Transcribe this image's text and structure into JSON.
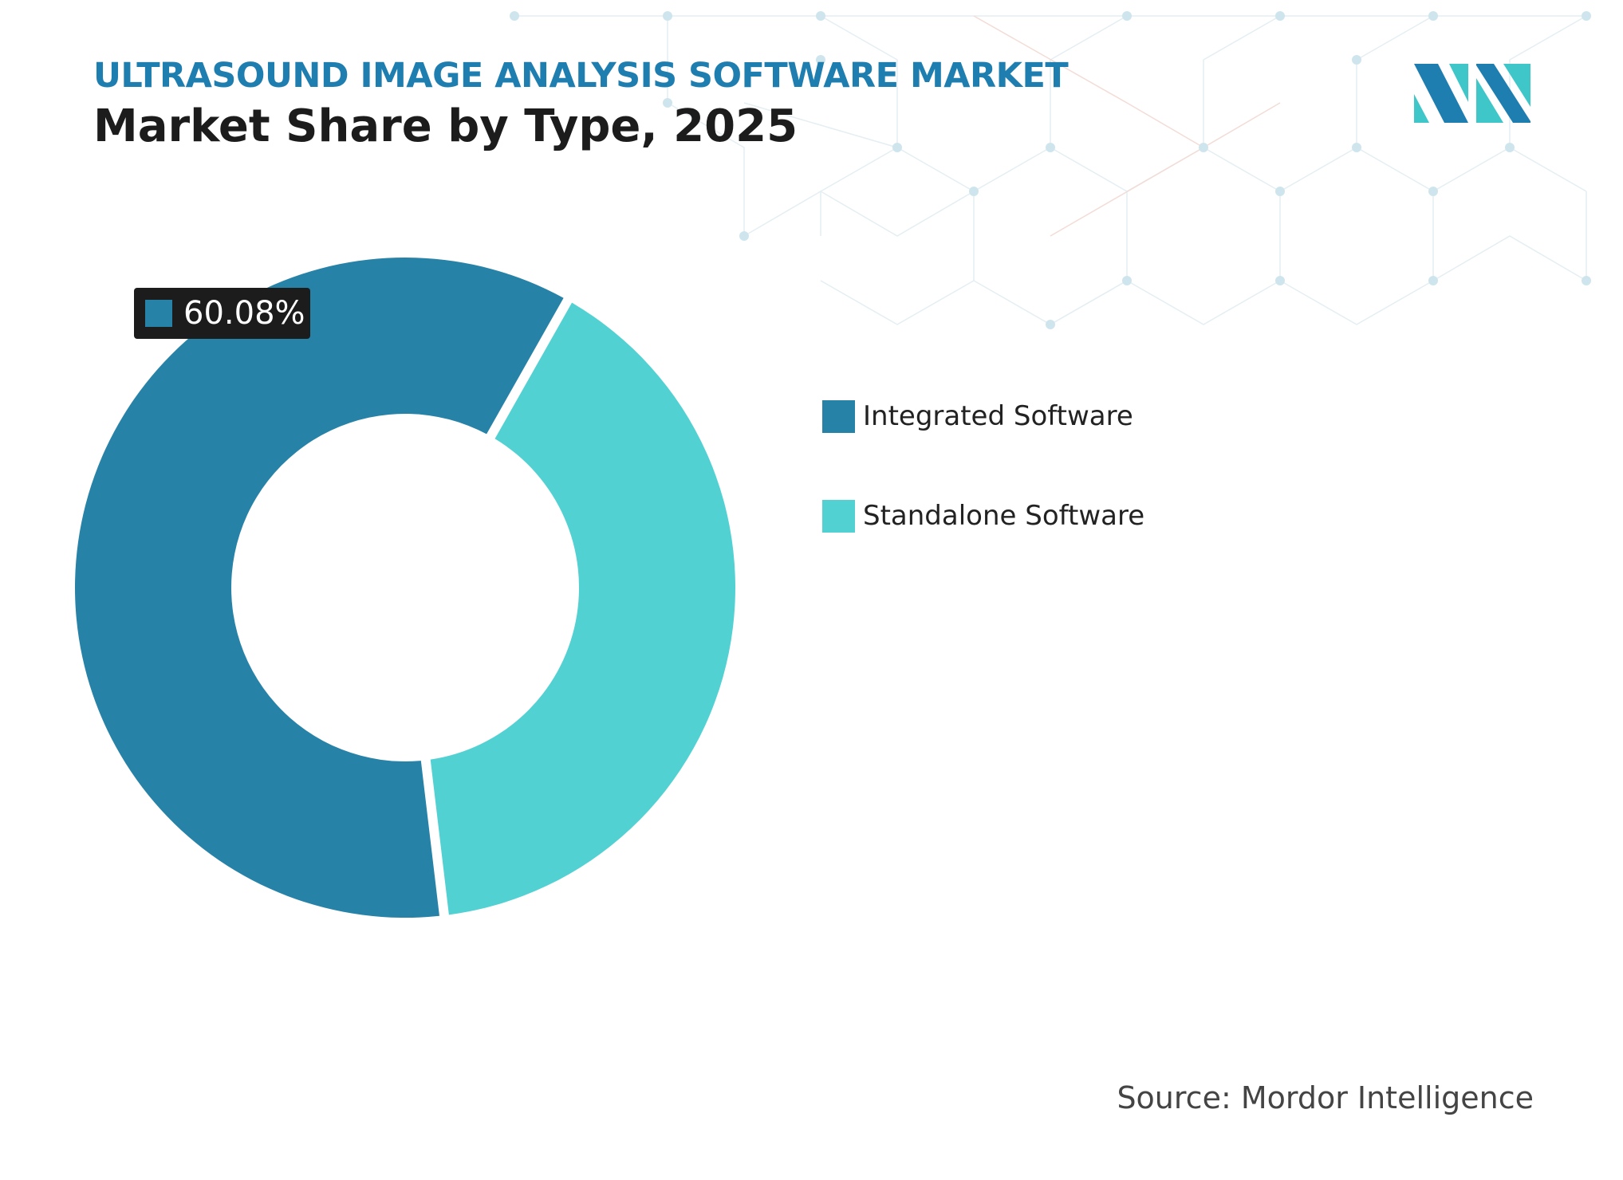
{
  "header": {
    "kicker": "ULTRASOUND IMAGE ANALYSIS SOFTWARE MARKET",
    "title": "Market Share by Type, 2025"
  },
  "logo": {
    "icon": "mordor-intelligence-logo-icon",
    "colors": [
      "#1f7eb0",
      "#3ec6c8"
    ]
  },
  "chart_data": {
    "type": "pie",
    "style": "donut",
    "categories": [
      "Integrated Software",
      "Standalone Software"
    ],
    "values": [
      60.08,
      39.92
    ],
    "colors": [
      "#2782a8",
      "#52d1d3"
    ],
    "data_labels": [
      {
        "category": "Integrated Software",
        "text": "60.08%"
      }
    ],
    "legend_position": "right"
  },
  "source": "Source: Mordor Intelligence"
}
